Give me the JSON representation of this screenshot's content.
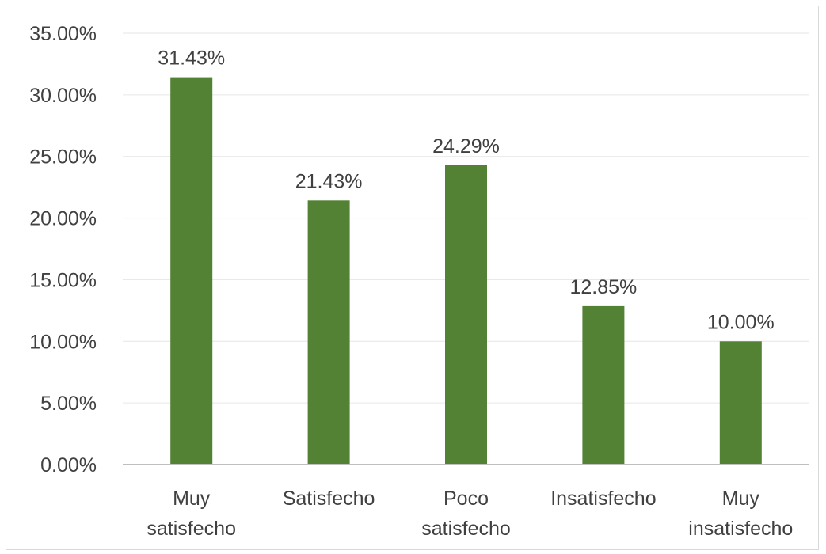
{
  "chart_data": {
    "type": "bar",
    "title": "",
    "xlabel": "",
    "ylabel": "",
    "categories": [
      [
        "Muy",
        "satisfecho"
      ],
      [
        "Satisfecho"
      ],
      [
        "Poco",
        "satisfecho"
      ],
      [
        "Insatisfecho"
      ],
      [
        "Muy",
        "insatisfecho"
      ]
    ],
    "values": [
      31.43,
      21.43,
      24.29,
      12.85,
      10.0
    ],
    "data_labels": [
      "31.43%",
      "21.43%",
      "24.29%",
      "12.85%",
      "10.00%"
    ],
    "ylim": [
      0,
      35
    ],
    "yticks": [
      0,
      5,
      10,
      15,
      20,
      25,
      30,
      35
    ],
    "ytick_labels": [
      "0.00%",
      "5.00%",
      "10.00%",
      "15.00%",
      "20.00%",
      "25.00%",
      "30.00%",
      "35.00%"
    ],
    "grid": true,
    "legend": "none",
    "bar_color": "#548235",
    "grid_color": "#e6e6e6",
    "axis_color": "#bfbfbf"
  }
}
